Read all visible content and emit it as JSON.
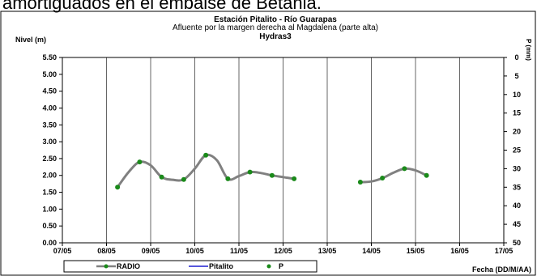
{
  "header_text": "amortiguados en el embalse de Betania.",
  "chart_data": {
    "type": "line",
    "title": "Estación Pitalito  - Río Guarapas",
    "subtitle": "Afluente por la margen derecha al Magdalena (parte alta)",
    "subtitle2": "Hydras3",
    "ylabel": "Nivel (m)",
    "y2label": "P (mm)",
    "xlabel": "Fecha (DD/M/AA)",
    "ylim": [
      0,
      5.5
    ],
    "y2lim": [
      0,
      50
    ],
    "y2_inverted": true,
    "x_start": "07/05",
    "x_end": "17/05",
    "x_ticks": [
      "07/05",
      "08/05",
      "09/05",
      "10/05",
      "11/05",
      "12/05",
      "13/05",
      "14/05",
      "15/05",
      "16/05",
      "17/05"
    ],
    "y_ticks": [
      "0.00",
      "0.50",
      "1.00",
      "1.50",
      "2.00",
      "2.50",
      "3.00",
      "3.50",
      "4.00",
      "4.50",
      "5.00",
      "5.50"
    ],
    "y2_ticks": [
      "0",
      "5",
      "10",
      "15",
      "20",
      "25",
      "30",
      "35",
      "40",
      "45",
      "50"
    ],
    "grid": "vertical",
    "series": [
      {
        "name": "RADIO",
        "color": "#808080",
        "segments": [
          [
            [
              "08/05 06:00",
              1.65
            ],
            [
              "08/05 12:00",
              2.1
            ],
            [
              "08/05 18:00",
              2.4
            ],
            [
              "09/05 00:00",
              2.3
            ],
            [
              "09/05 06:00",
              1.95
            ],
            [
              "09/05 12:00",
              1.87
            ],
            [
              "09/05 18:00",
              1.88
            ],
            [
              "10/05 00:00",
              2.2
            ],
            [
              "10/05 06:00",
              2.6
            ],
            [
              "10/05 12:00",
              2.45
            ],
            [
              "10/05 18:00",
              1.9
            ],
            [
              "11/05 00:00",
              1.98
            ],
            [
              "11/05 06:00",
              2.1
            ],
            [
              "11/05 12:00",
              2.07
            ],
            [
              "11/05 18:00",
              2.0
            ],
            [
              "12/05 00:00",
              1.95
            ],
            [
              "12/05 06:00",
              1.9
            ]
          ],
          [
            [
              "13/05 18:00",
              1.8
            ],
            [
              "14/05 00:00",
              1.82
            ],
            [
              "14/05 06:00",
              1.92
            ],
            [
              "14/05 12:00",
              2.08
            ],
            [
              "14/05 18:00",
              2.2
            ],
            [
              "15/05 00:00",
              2.15
            ],
            [
              "15/05 06:00",
              2.0
            ]
          ]
        ]
      },
      {
        "name": "Pitalito",
        "color": "#1f1fd0",
        "segments": []
      },
      {
        "name": "P",
        "color": "#1a8a1a",
        "points": [
          [
            "08/05 06:00",
            1.65
          ],
          [
            "08/05 18:00",
            2.4
          ],
          [
            "09/05 06:00",
            1.95
          ],
          [
            "09/05 18:00",
            1.88
          ],
          [
            "10/05 06:00",
            2.6
          ],
          [
            "10/05 18:00",
            1.9
          ],
          [
            "11/05 06:00",
            2.1
          ],
          [
            "11/05 18:00",
            2.0
          ],
          [
            "12/05 06:00",
            1.9
          ],
          [
            "13/05 18:00",
            1.8
          ],
          [
            "14/05 06:00",
            1.92
          ],
          [
            "14/05 18:00",
            2.2
          ],
          [
            "15/05 06:00",
            2.0
          ]
        ]
      }
    ],
    "legend": [
      "RADIO",
      "Pitalito",
      "P"
    ],
    "legend_position": "bottom-left"
  }
}
